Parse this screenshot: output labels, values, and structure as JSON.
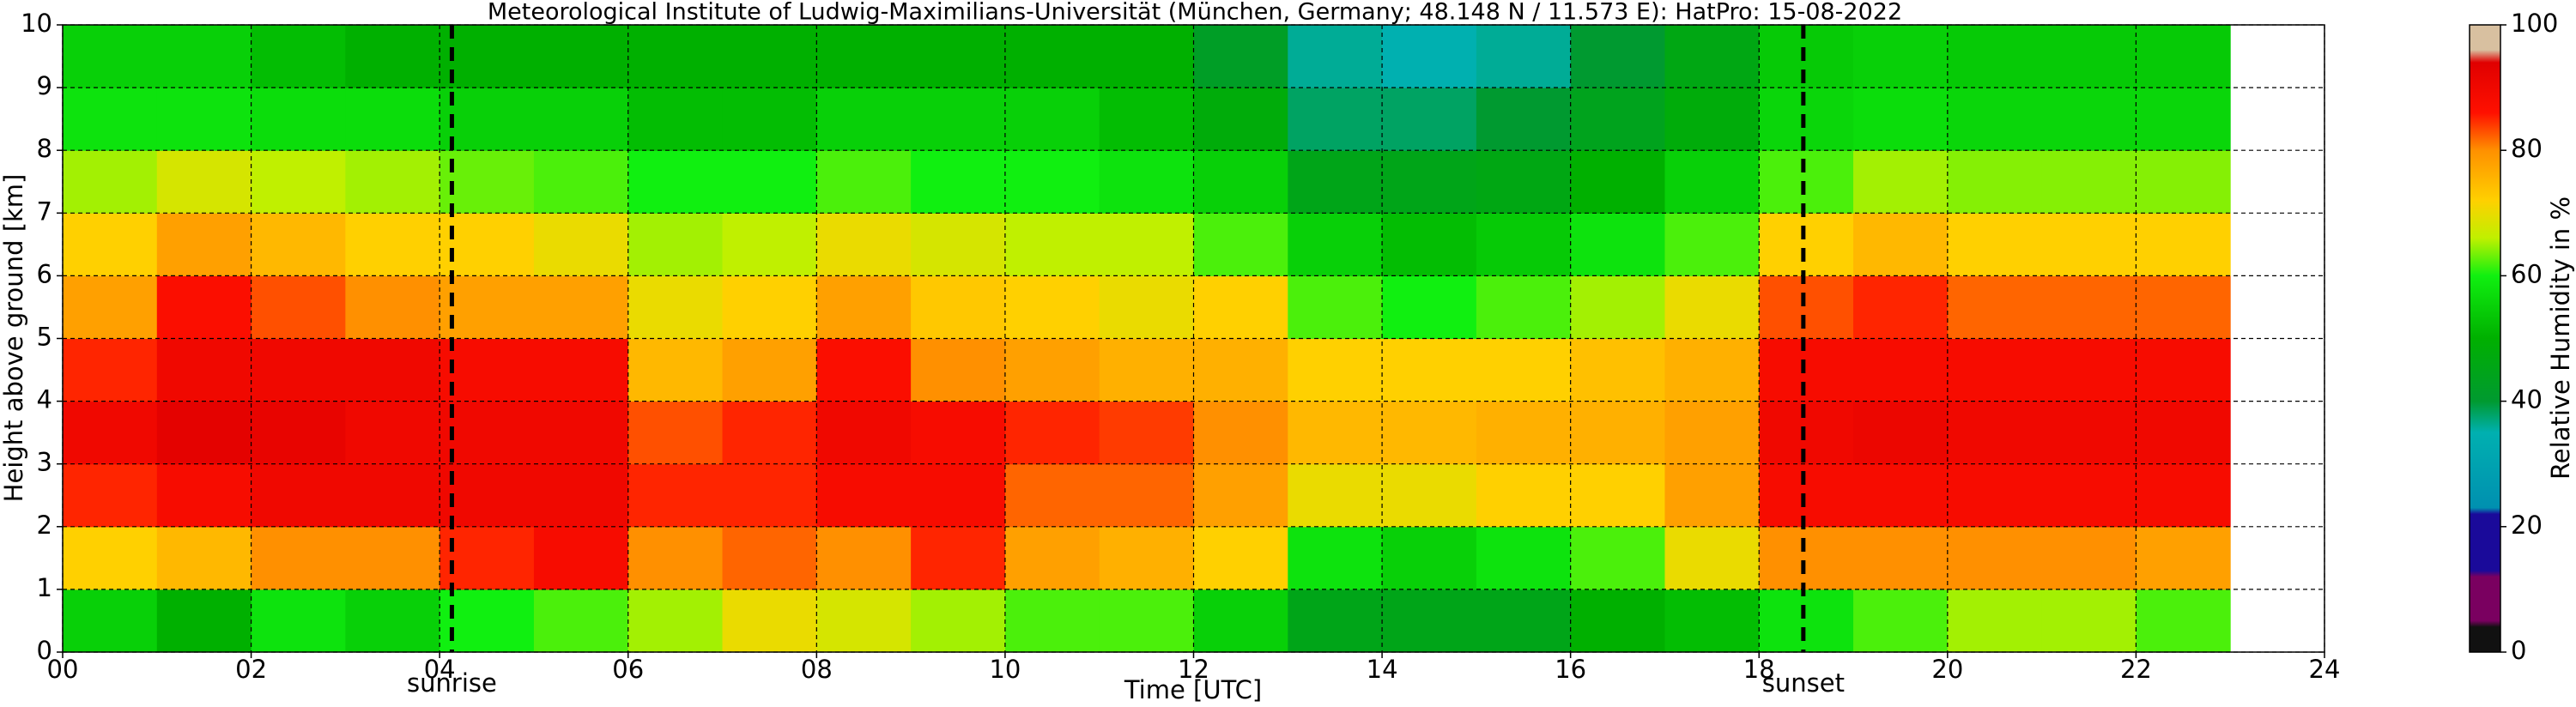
{
  "chart_data": {
    "type": "heatmap",
    "title": "Meteorological Institute of Ludwig-Maximilians-Universität (München, Germany; 48.148 N / 11.573 E):    HatPro: 15-08-2022",
    "x_label": "Time [UTC]",
    "y_label": "Height above ground [km]",
    "colorbar_label": "Relative Humidity in %",
    "xbins": [
      0,
      1,
      2,
      3,
      4,
      5,
      6,
      7,
      8,
      9,
      10,
      11,
      12,
      13,
      14,
      15,
      16,
      17,
      18,
      19,
      20,
      21,
      22,
      23
    ],
    "ybins": [
      0,
      1,
      2,
      3,
      4,
      5,
      6,
      7,
      8,
      9,
      10
    ],
    "z": [
      [
        55,
        50,
        58,
        55,
        60,
        62,
        65,
        70,
        68,
        65,
        62,
        62,
        55,
        45,
        45,
        45,
        50,
        52,
        58,
        62,
        65,
        65,
        62
      ],
      [
        72,
        75,
        80,
        80,
        85,
        88,
        80,
        82,
        80,
        85,
        78,
        76,
        72,
        58,
        55,
        58,
        62,
        70,
        80,
        80,
        80,
        80,
        78
      ],
      [
        85,
        88,
        90,
        90,
        90,
        90,
        85,
        85,
        88,
        88,
        82,
        82,
        78,
        70,
        70,
        72,
        72,
        78,
        88,
        88,
        88,
        88,
        88
      ],
      [
        90,
        93,
        92,
        90,
        90,
        90,
        83,
        85,
        90,
        88,
        85,
        84,
        80,
        75,
        75,
        76,
        76,
        78,
        90,
        91,
        90,
        90,
        90
      ],
      [
        85,
        90,
        90,
        90,
        88,
        88,
        75,
        78,
        87,
        80,
        78,
        76,
        76,
        72,
        72,
        72,
        74,
        76,
        88,
        88,
        88,
        88,
        88
      ],
      [
        78,
        87,
        83,
        80,
        78,
        78,
        70,
        72,
        78,
        73,
        72,
        70,
        72,
        62,
        60,
        62,
        65,
        70,
        83,
        85,
        82,
        82,
        82
      ],
      [
        72,
        78,
        75,
        72,
        72,
        70,
        65,
        66,
        70,
        68,
        66,
        66,
        62,
        55,
        52,
        54,
        58,
        62,
        72,
        75,
        72,
        72,
        72
      ],
      [
        65,
        68,
        66,
        65,
        63,
        62,
        60,
        60,
        62,
        60,
        60,
        58,
        55,
        45,
        45,
        46,
        50,
        55,
        62,
        65,
        64,
        64,
        64
      ],
      [
        58,
        58,
        57,
        57,
        55,
        55,
        52,
        52,
        55,
        55,
        55,
        52,
        48,
        38,
        38,
        40,
        44,
        48,
        56,
        57,
        56,
        56,
        56
      ],
      [
        55,
        55,
        52,
        50,
        50,
        50,
        50,
        50,
        50,
        50,
        50,
        50,
        42,
        36,
        35,
        36,
        40,
        46,
        54,
        55,
        54,
        54,
        54
      ]
    ],
    "xlim": [
      0,
      24
    ],
    "xticks": [
      {
        "value": 0,
        "label": "00"
      },
      {
        "value": 2,
        "label": "02"
      },
      {
        "value": 4,
        "label": "04"
      },
      {
        "value": 6,
        "label": "06"
      },
      {
        "value": 8,
        "label": "08"
      },
      {
        "value": 10,
        "label": "10"
      },
      {
        "value": 12,
        "label": "12"
      },
      {
        "value": 14,
        "label": "14"
      },
      {
        "value": 16,
        "label": "16"
      },
      {
        "value": 18,
        "label": "18"
      },
      {
        "value": 20,
        "label": "20"
      },
      {
        "value": 22,
        "label": "22"
      },
      {
        "value": 24,
        "label": "24"
      }
    ],
    "ylim": [
      0,
      10
    ],
    "yticks": [
      0,
      1,
      2,
      3,
      4,
      5,
      6,
      7,
      8,
      9,
      10
    ],
    "clim": [
      0,
      100
    ],
    "cticks": [
      0,
      20,
      40,
      60,
      80,
      100
    ],
    "colorscale": [
      [
        0,
        "#111111"
      ],
      [
        4,
        "#111111"
      ],
      [
        5,
        "#7a0060"
      ],
      [
        12,
        "#7a0060"
      ],
      [
        13,
        "#1a0a9a"
      ],
      [
        22,
        "#1a0a9a"
      ],
      [
        23,
        "#0090b0"
      ],
      [
        35,
        "#00b0b0"
      ],
      [
        40,
        "#009a30"
      ],
      [
        50,
        "#00b000"
      ],
      [
        60,
        "#10f010"
      ],
      [
        66,
        "#c0f000"
      ],
      [
        72,
        "#ffd000"
      ],
      [
        80,
        "#ff9000"
      ],
      [
        86,
        "#ff1000"
      ],
      [
        94,
        "#e00000"
      ],
      [
        96,
        "#d8c0a0"
      ],
      [
        100,
        "#d8c0a0"
      ]
    ],
    "grid": true,
    "annotations": [
      {
        "text": "sunrise",
        "x": 4.13
      },
      {
        "text": "sunset",
        "x": 18.47
      }
    ]
  }
}
